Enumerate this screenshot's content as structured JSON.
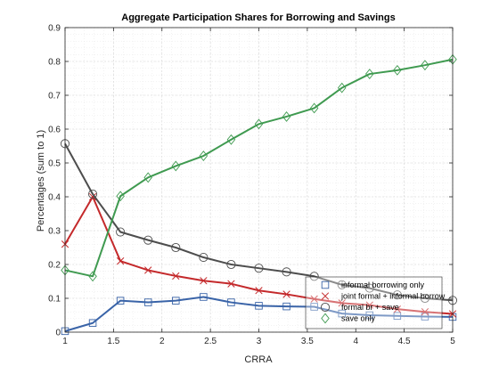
{
  "chart_data": {
    "type": "line",
    "title": "Aggregate Participation Shares for Borrowing and Savings",
    "xlabel": "CRRA",
    "ylabel": "Percentages (sum to 1)",
    "xlim": [
      1,
      5
    ],
    "ylim": [
      0,
      0.9
    ],
    "xticks": [
      1,
      1.5,
      2,
      2.5,
      3,
      3.5,
      4,
      4.5,
      5
    ],
    "xtick_labels": [
      "1",
      "1.5",
      "2",
      "2.5",
      "3",
      "3.5",
      "4",
      "4.5",
      "5"
    ],
    "yticks": [
      0,
      0.1,
      0.2,
      0.3,
      0.4,
      0.5,
      0.6,
      0.7,
      0.8,
      0.9
    ],
    "ytick_labels": [
      "0",
      "0.1",
      "0.2",
      "0.3",
      "0.4",
      "0.5",
      "0.6",
      "0.7",
      "0.8",
      "0.9"
    ],
    "grid": true,
    "legend_position": "bottom-right",
    "x": [
      1.0,
      1.2857,
      1.5714,
      1.8571,
      2.1429,
      2.4286,
      2.7143,
      3.0,
      3.2857,
      3.5714,
      3.8571,
      4.1429,
      4.4286,
      4.7143,
      5.0
    ],
    "series": [
      {
        "name": "informal borrowing only",
        "color": "#3a64a8",
        "marker": "square",
        "values": [
          0.003,
          0.027,
          0.093,
          0.088,
          0.093,
          0.104,
          0.088,
          0.078,
          0.076,
          0.075,
          0.055,
          0.05,
          0.048,
          0.046,
          0.045
        ]
      },
      {
        "name": "joint formal + informal borrow",
        "color": "#c4292b",
        "marker": "x",
        "values": [
          0.26,
          0.4,
          0.21,
          0.183,
          0.166,
          0.152,
          0.143,
          0.123,
          0.112,
          0.098,
          0.086,
          0.08,
          0.068,
          0.06,
          0.054
        ]
      },
      {
        "name": "formal br + save",
        "color": "#4d4d4d",
        "marker": "circle",
        "values": [
          0.557,
          0.408,
          0.296,
          0.272,
          0.25,
          0.221,
          0.2,
          0.189,
          0.178,
          0.165,
          0.14,
          0.13,
          0.11,
          0.1,
          0.094
        ]
      },
      {
        "name": "save only",
        "color": "#3f9a50",
        "marker": "diamond",
        "values": [
          0.183,
          0.165,
          0.402,
          0.457,
          0.491,
          0.521,
          0.569,
          0.615,
          0.637,
          0.662,
          0.722,
          0.763,
          0.774,
          0.789,
          0.806
        ]
      }
    ]
  }
}
